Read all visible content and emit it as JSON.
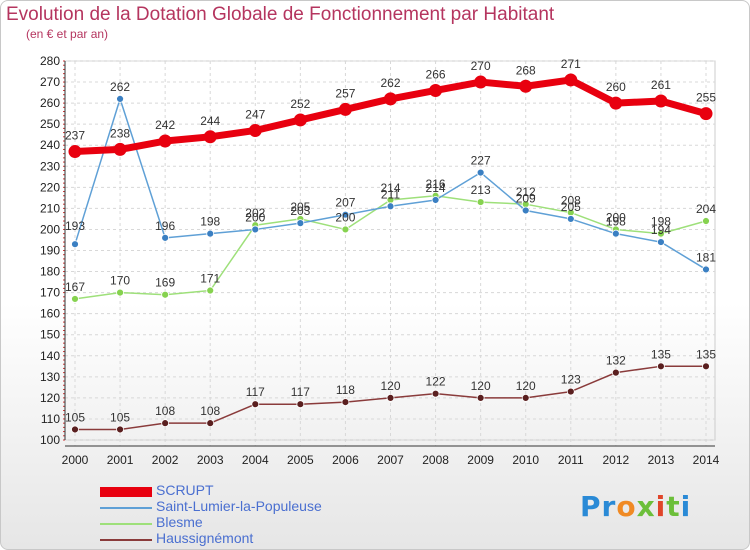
{
  "header": {
    "title": "Evolution de la Dotation Globale de Fonctionnement par Habitant",
    "subtitle": "(en € et par an)"
  },
  "brand": {
    "logo_text": "Proxiti"
  },
  "chart_data": {
    "type": "line",
    "categories": [
      "2000",
      "2001",
      "2002",
      "2003",
      "2004",
      "2005",
      "2006",
      "2007",
      "2008",
      "2009",
      "2010",
      "2011",
      "2012",
      "2013",
      "2014"
    ],
    "ylim": [
      100,
      280
    ],
    "y_ticks": [
      100,
      110,
      120,
      130,
      140,
      150,
      160,
      170,
      180,
      190,
      200,
      210,
      220,
      230,
      240,
      250,
      260,
      270,
      280
    ],
    "grid": true,
    "legend_position": "bottom-left",
    "series": [
      {
        "name": "SCRUPT",
        "color": "#e8000f",
        "marker": "#e8000f",
        "label_color": "#333333",
        "width": 7,
        "label": "above",
        "values": [
          237,
          238,
          242,
          244,
          247,
          252,
          257,
          262,
          266,
          270,
          268,
          271,
          260,
          261,
          255
        ]
      },
      {
        "name": "Saint-Lumier-la-Populeuse",
        "color": "#5fa0d6",
        "marker": "#3a7fc2",
        "label_color": "#333333",
        "width": 1.5,
        "label": "mixed",
        "values": [
          193,
          262,
          196,
          198,
          200,
          203,
          207,
          211,
          214,
          227,
          209,
          205,
          198,
          194,
          181
        ]
      },
      {
        "name": "Blesme",
        "color": "#9ee07a",
        "marker": "#86d24f",
        "label_color": "#333333",
        "width": 1.5,
        "label": "above",
        "values": [
          167,
          170,
          169,
          171,
          202,
          205,
          200,
          214,
          216,
          213,
          212,
          208,
          200,
          198,
          204
        ]
      },
      {
        "name": "Haussignémont",
        "color": "#8a3b3b",
        "marker": "#5a1f1f",
        "label_color": "#333333",
        "width": 1.5,
        "label": "above",
        "values": [
          105,
          105,
          108,
          108,
          117,
          117,
          118,
          120,
          122,
          120,
          120,
          123,
          132,
          135,
          135
        ]
      }
    ]
  }
}
